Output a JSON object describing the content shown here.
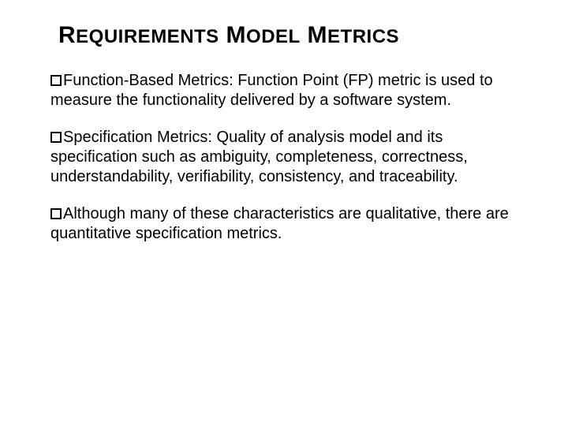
{
  "title": {
    "w1_big": "R",
    "w1_small": "EQUIREMENTS",
    "w2_big": "M",
    "w2_small": "ODEL",
    "w3_big": "M",
    "w3_small": "ETRICS"
  },
  "bullets": [
    "Function-Based Metrics: Function Point (FP) metric is used to measure the functionality delivered by a software system.",
    "Specification Metrics: Quality of analysis model and its specification such as ambiguity, completeness, correctness, understandability, verifiability, consistency, and traceability.",
    "Although many of these characteristics are qualitative, there are quantitative specification metrics."
  ],
  "colors": {
    "text": "#000000",
    "background": "#ffffff",
    "bullet_border": "#000000"
  },
  "typography": {
    "title_big_pt": 30,
    "title_small_pt": 24,
    "body_pt": 20,
    "family": "Arial"
  }
}
